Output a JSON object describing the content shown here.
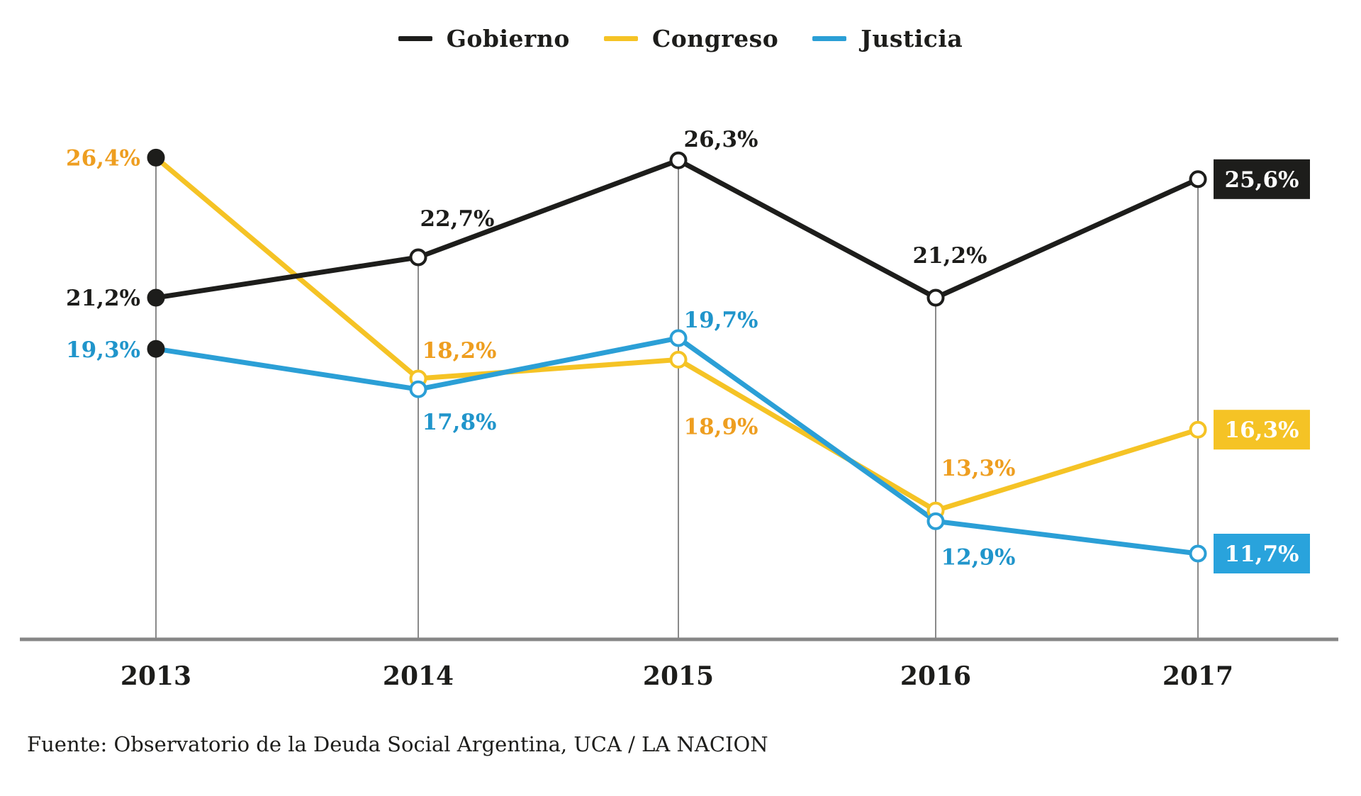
{
  "chart_data": {
    "type": "line",
    "title": "",
    "categories": [
      "2013",
      "2014",
      "2015",
      "2016",
      "2017"
    ],
    "series": [
      {
        "name": "Gobierno",
        "values": [
          21.2,
          22.7,
          26.3,
          21.2,
          25.6
        ],
        "display_labels": [
          "21,2%",
          "22,7%",
          "26,3%",
          "21,2%",
          "25,6%"
        ],
        "line_color": "#1d1d1b",
        "label_color": "#1d1d1b",
        "box_color": "#1d1d1b"
      },
      {
        "name": "Congreso",
        "values": [
          26.4,
          18.2,
          18.9,
          13.3,
          16.3
        ],
        "display_labels": [
          "26,4%",
          "18,2%",
          "18,9%",
          "13,3%",
          "16,3%"
        ],
        "line_color": "#f5c325",
        "label_color": "#ee9e20",
        "box_color": "#f5c325"
      },
      {
        "name": "Justicia",
        "values": [
          19.3,
          17.8,
          19.7,
          12.9,
          11.7
        ],
        "display_labels": [
          "19,3%",
          "17,8%",
          "19,7%",
          "12,9%",
          "11,7%"
        ],
        "line_color": "#2b9fd6",
        "label_color": "#2095cb",
        "box_color": "#29a3dc"
      }
    ],
    "value_suffix": "%",
    "decimal_separator": ",",
    "ylim": [
      10,
      28
    ],
    "legend_position": "top-center",
    "grid": "vertical-year-lines",
    "grid_color": "#8a8a8a",
    "axis_color": "#868686",
    "tick_label_color": "#1d1d1b",
    "marker_style": {
      "first_point": "solid-black-dot",
      "other_points": "open-circle"
    },
    "last_point_label_style": "boxed-white-text"
  },
  "source": "Fuente: Observatorio de la Deuda Social Argentina, UCA / LA NACION"
}
